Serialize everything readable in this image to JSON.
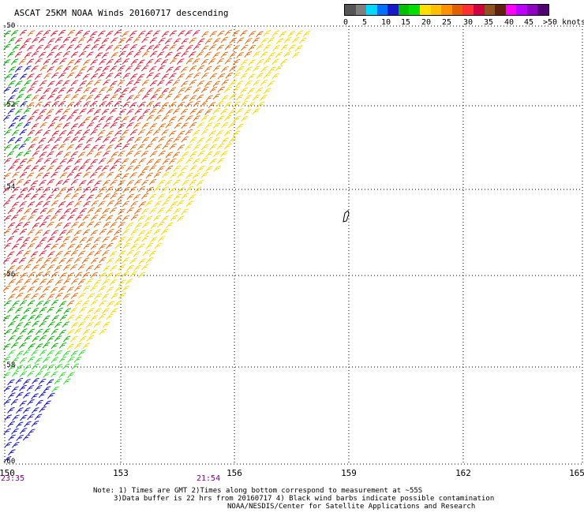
{
  "title": "ASCAT 25KM NOAA Winds 20160717 descending",
  "legend": {
    "labels": [
      "0",
      "5",
      "10",
      "15",
      "20",
      "25",
      "30",
      "35",
      "40",
      "45",
      ">50 knots"
    ],
    "colors": [
      "#555555",
      "#7f7f7f",
      "#00d8ff",
      "#0070ff",
      "#1818c8",
      "#00c000",
      "#00e000",
      "#ffe000",
      "#ffc000",
      "#ff9000",
      "#e06000",
      "#ff3030",
      "#d00040",
      "#905020",
      "#602010",
      "#ff00ff",
      "#c000ff",
      "#9000c0",
      "#500070"
    ]
  },
  "axes": {
    "x_ticks": [
      "150",
      "153",
      "156",
      "159",
      "162",
      "165"
    ],
    "y_ticks": [
      "-50",
      "-52",
      "-54",
      "-56",
      "-58",
      "-60"
    ]
  },
  "times": [
    {
      "label": "23:35"
    },
    {
      "label": "21:54"
    }
  ],
  "notes": {
    "line1": "Note: 1) Times are GMT 2)Times along bottom correspond to measurement at ~55S",
    "line2": "3)Data buffer is 22 hrs from 20160717 4) Black wind barbs indicate possible contamination",
    "line3": "NOAA/NESDIS/Center for Satellite Applications and Research"
  },
  "wind_colors": {
    "red": "#e0203a",
    "orange": "#e86a10",
    "yellow": "#ffd800",
    "green": "#00b000",
    "blue": "#1010c0",
    "bright_green": "#30e030"
  }
}
